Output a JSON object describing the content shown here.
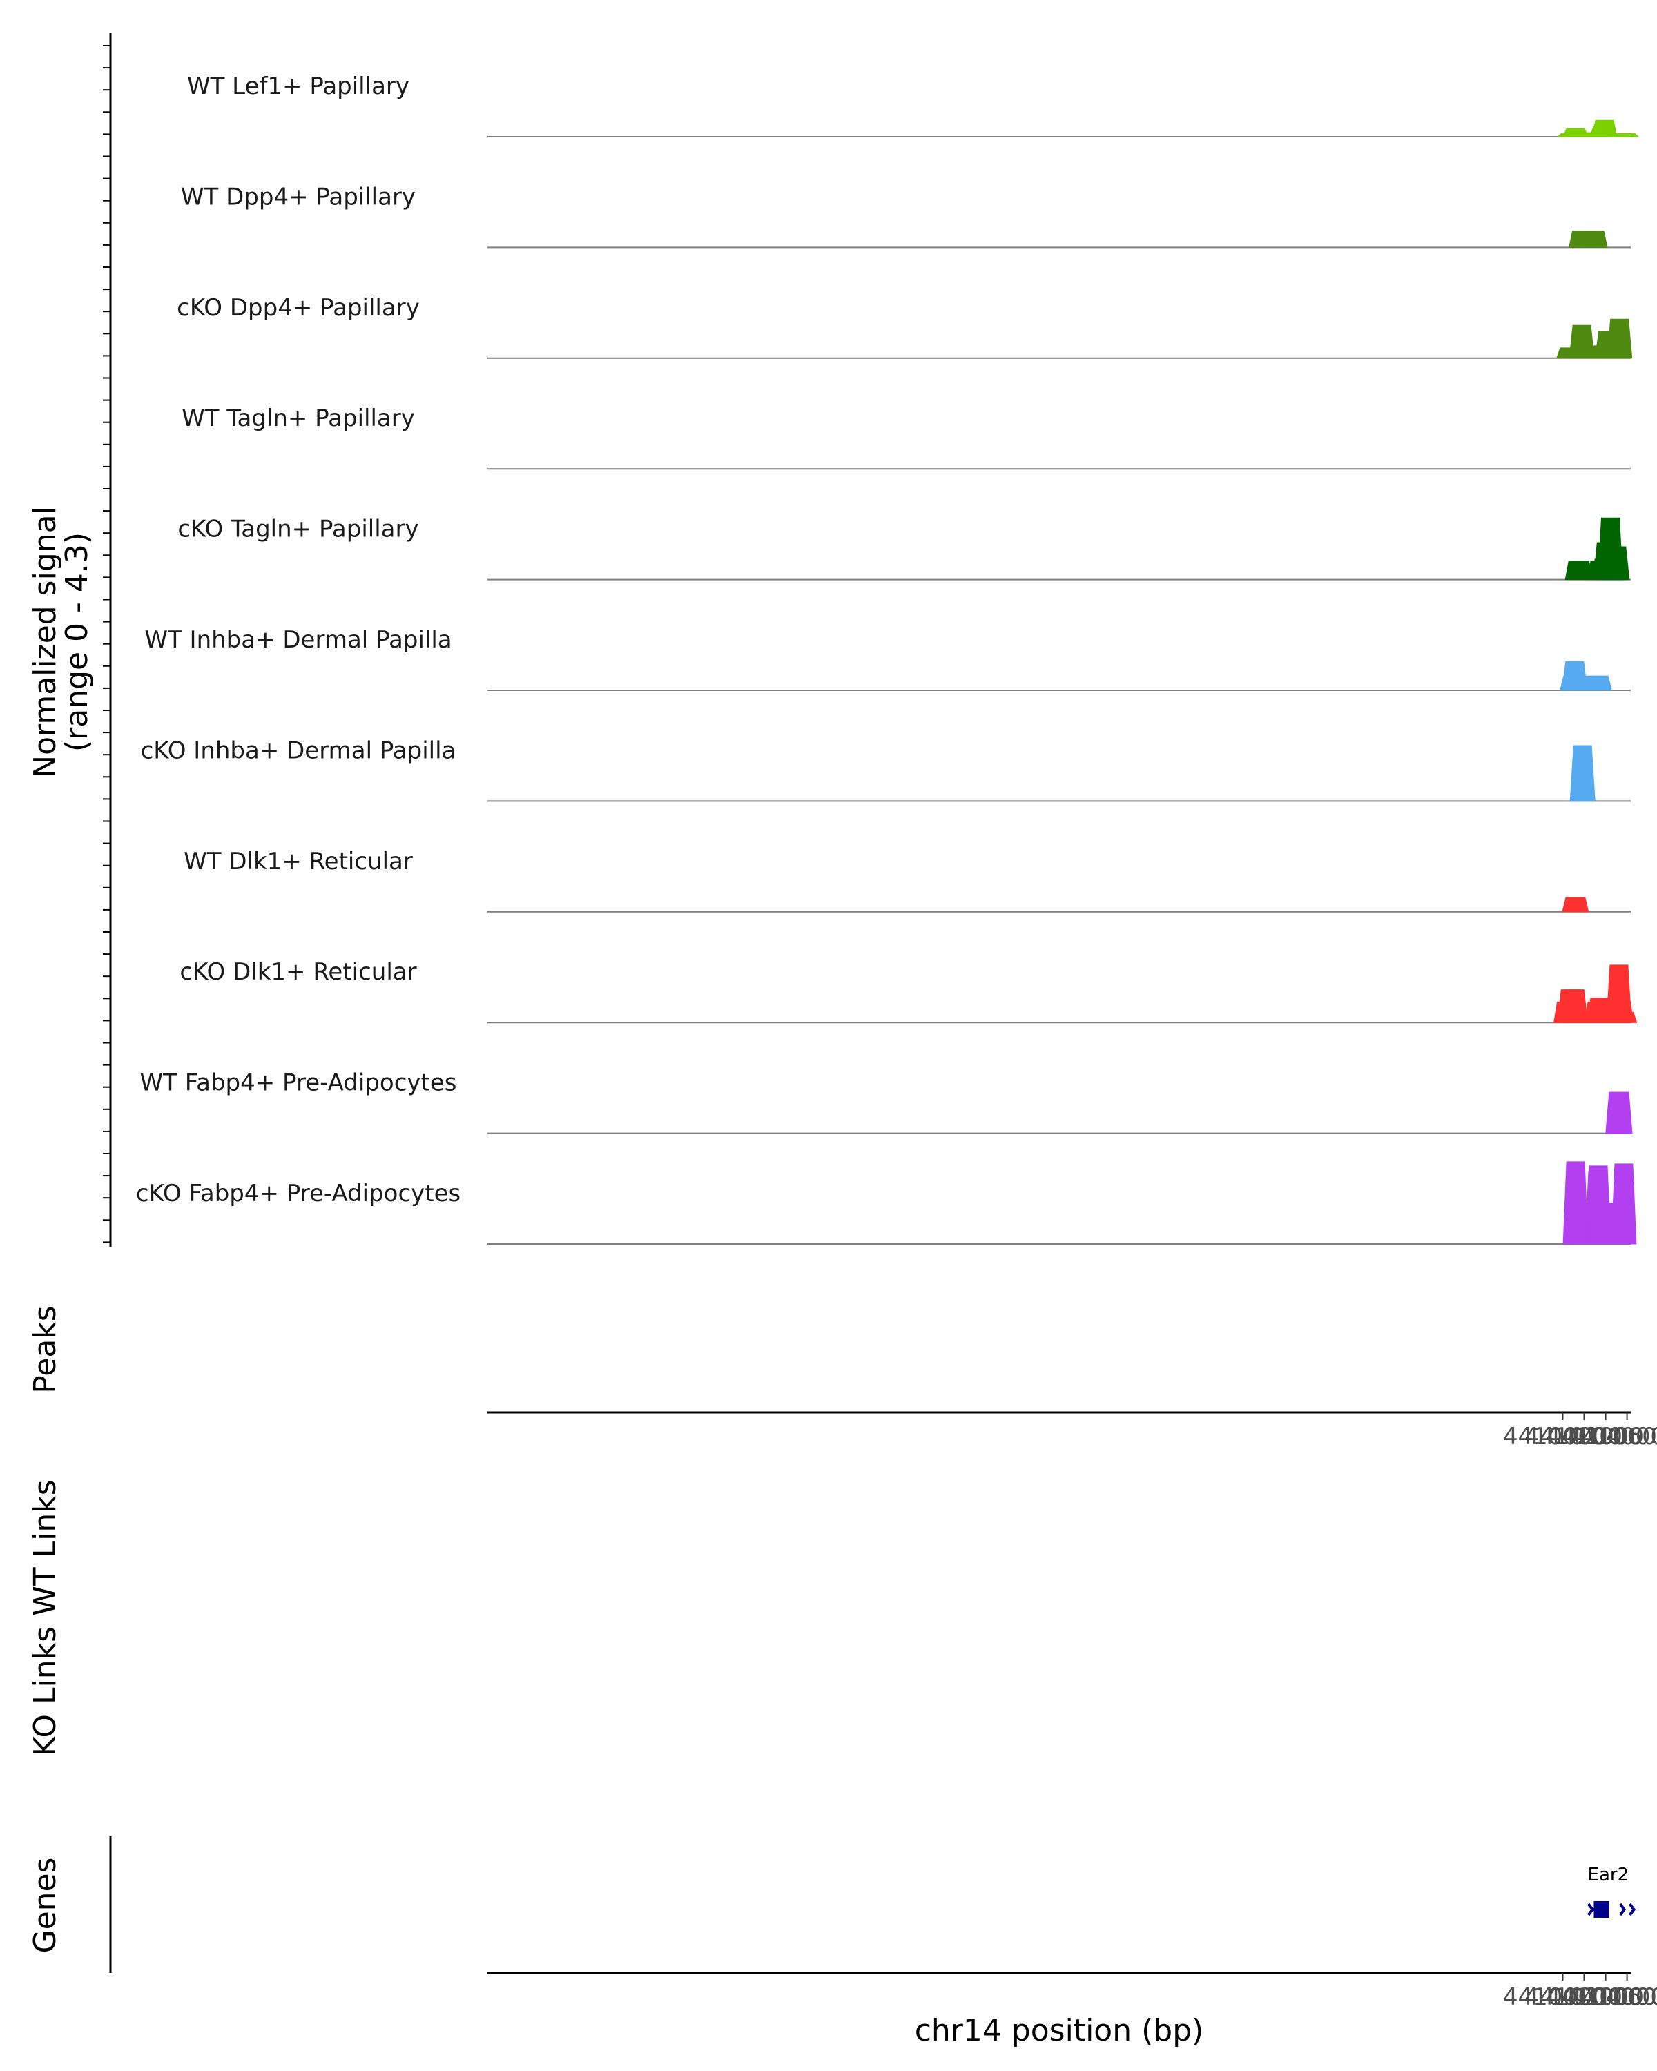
{
  "chart_data": {
    "type": "coverage",
    "region": "chr14:44100000-44106000",
    "x_label": "chr14 position (bp)",
    "y_label": "Normalized signal",
    "y_range_label": "(range 0 - 4.3)",
    "ylim": [
      0,
      4.3
    ],
    "xlim": [
      43999650,
      44106350
    ],
    "x_ticks": [
      44100000,
      44102000,
      44104000,
      44106000
    ],
    "x_tick_labels": [
      "44100000",
      "44102000",
      "44104000",
      "44106000"
    ],
    "tracks": [
      {
        "name": "WT Lef1+ Papillary",
        "color": "#7cd100",
        "bins": [
          [
            44100700,
            0.15
          ],
          [
            44101200,
            0.4
          ],
          [
            44101350,
            0.2
          ],
          [
            44101900,
            0.15
          ],
          [
            44102200,
            0.15
          ],
          [
            44102500,
            0.15
          ],
          [
            44102800,
            0.15
          ],
          [
            44103000,
            0.2
          ],
          [
            44103700,
            0.5
          ],
          [
            44103900,
            0.8
          ],
          [
            44104100,
            0.2
          ],
          [
            44104400,
            0.15
          ],
          [
            44104600,
            0.15
          ],
          [
            44105300,
            0.15
          ],
          [
            44105600,
            0.15
          ],
          [
            44105900,
            0.15
          ]
        ]
      },
      {
        "name": "WT Dpp4+ Papillary",
        "color": "#4f8a10",
        "bins": [
          [
            44101750,
            0.8
          ],
          [
            44101980,
            0.8
          ],
          [
            44102820,
            0.8
          ],
          [
            44103000,
            0.8
          ]
        ]
      },
      {
        "name": "cKO Dpp4+ Papillary",
        "color": "#4f8a10",
        "bins": [
          [
            44100600,
            0.5
          ],
          [
            44101780,
            1.6
          ],
          [
            44103050,
            0.6
          ],
          [
            44103300,
            0.4
          ],
          [
            44104100,
            0.8
          ],
          [
            44104200,
            1.3
          ],
          [
            44104500,
            0.9
          ],
          [
            44104700,
            0.5
          ],
          [
            44104950,
            0.4
          ],
          [
            44105150,
            0.5
          ],
          [
            44105300,
            1.9
          ]
        ]
      },
      {
        "name": "WT Tagln+ Papillary",
        "color": "#006400",
        "bins": []
      },
      {
        "name": "cKO Tagln+ Papillary",
        "color": "#006400",
        "bins": [
          [
            44101400,
            0.9
          ],
          [
            44101600,
            0.9
          ],
          [
            44103450,
            0.9
          ],
          [
            44103850,
            1.0
          ],
          [
            44104050,
            1.8
          ],
          [
            44104250,
            1.0
          ],
          [
            44104450,
            3.0
          ],
          [
            44104680,
            1.3
          ],
          [
            44104850,
            1.6
          ],
          [
            44105050,
            1.6
          ]
        ]
      },
      {
        "name": "WT Inhba+ Dermal Papilla",
        "color": "#56aaf0",
        "bins": [
          [
            44100920,
            0.7
          ],
          [
            44101120,
            1.4
          ],
          [
            44101320,
            0.7
          ],
          [
            44101720,
            0.7
          ],
          [
            44103250,
            0.7
          ],
          [
            44103400,
            0.7
          ]
        ]
      },
      {
        "name": "cKO Inhba+ Dermal Papilla",
        "color": "#56aaf0",
        "bins": [
          [
            44101850,
            2.7
          ]
        ]
      },
      {
        "name": "WT Dlk1+ Reticular",
        "color": "#ff3030",
        "bins": [
          [
            44101130,
            0.7
          ],
          [
            44101250,
            0.7
          ]
        ]
      },
      {
        "name": "cKO Dlk1+ Reticular",
        "color": "#ff3030",
        "bins": [
          [
            44100330,
            1.0
          ],
          [
            44100700,
            1.6
          ],
          [
            44101150,
            1.6
          ],
          [
            44101500,
            0.5
          ],
          [
            44101700,
            0.5
          ],
          [
            44103200,
            1.0
          ],
          [
            44103450,
            1.2
          ],
          [
            44103750,
            0.5
          ],
          [
            44104400,
            0.6
          ],
          [
            44104850,
            1.0
          ],
          [
            44105250,
            2.8
          ],
          [
            44105450,
            1.1
          ],
          [
            44105750,
            0.5
          ]
        ]
      },
      {
        "name": "WT Fabp4+ Pre-Adipocytes",
        "color": "#b23ff0",
        "bins": [
          [
            44105180,
            2.0
          ],
          [
            44105320,
            2.0
          ]
        ]
      },
      {
        "name": "cKO Fabp4+ Pre-Adipocytes",
        "color": "#b23ff0",
        "bins": [
          [
            44101200,
            4.0
          ],
          [
            44101450,
            2.0
          ],
          [
            44101650,
            2.0
          ],
          [
            44103250,
            3.5
          ],
          [
            44103320,
            3.8
          ],
          [
            44103400,
            2.0
          ],
          [
            44104850,
            2.0
          ],
          [
            44105050,
            2.0
          ],
          [
            44105250,
            2.0
          ],
          [
            44105450,
            2.0
          ],
          [
            44105700,
            3.9
          ]
        ]
      }
    ],
    "panels": [
      {
        "name": "Peaks",
        "label": "Peaks",
        "features": []
      },
      {
        "name": "WT Links",
        "label": "WT Links",
        "features": []
      },
      {
        "name": "KO Links",
        "label": "KO Links",
        "features": []
      },
      {
        "name": "Genes",
        "label": "Genes",
        "genes": [
          {
            "name": "Ear2",
            "start": 44102650,
            "end": 44103520,
            "cds_start": 44102900,
            "cds_end": 44103520,
            "strand": "+",
            "color": "#00008b"
          }
        ]
      }
    ]
  }
}
